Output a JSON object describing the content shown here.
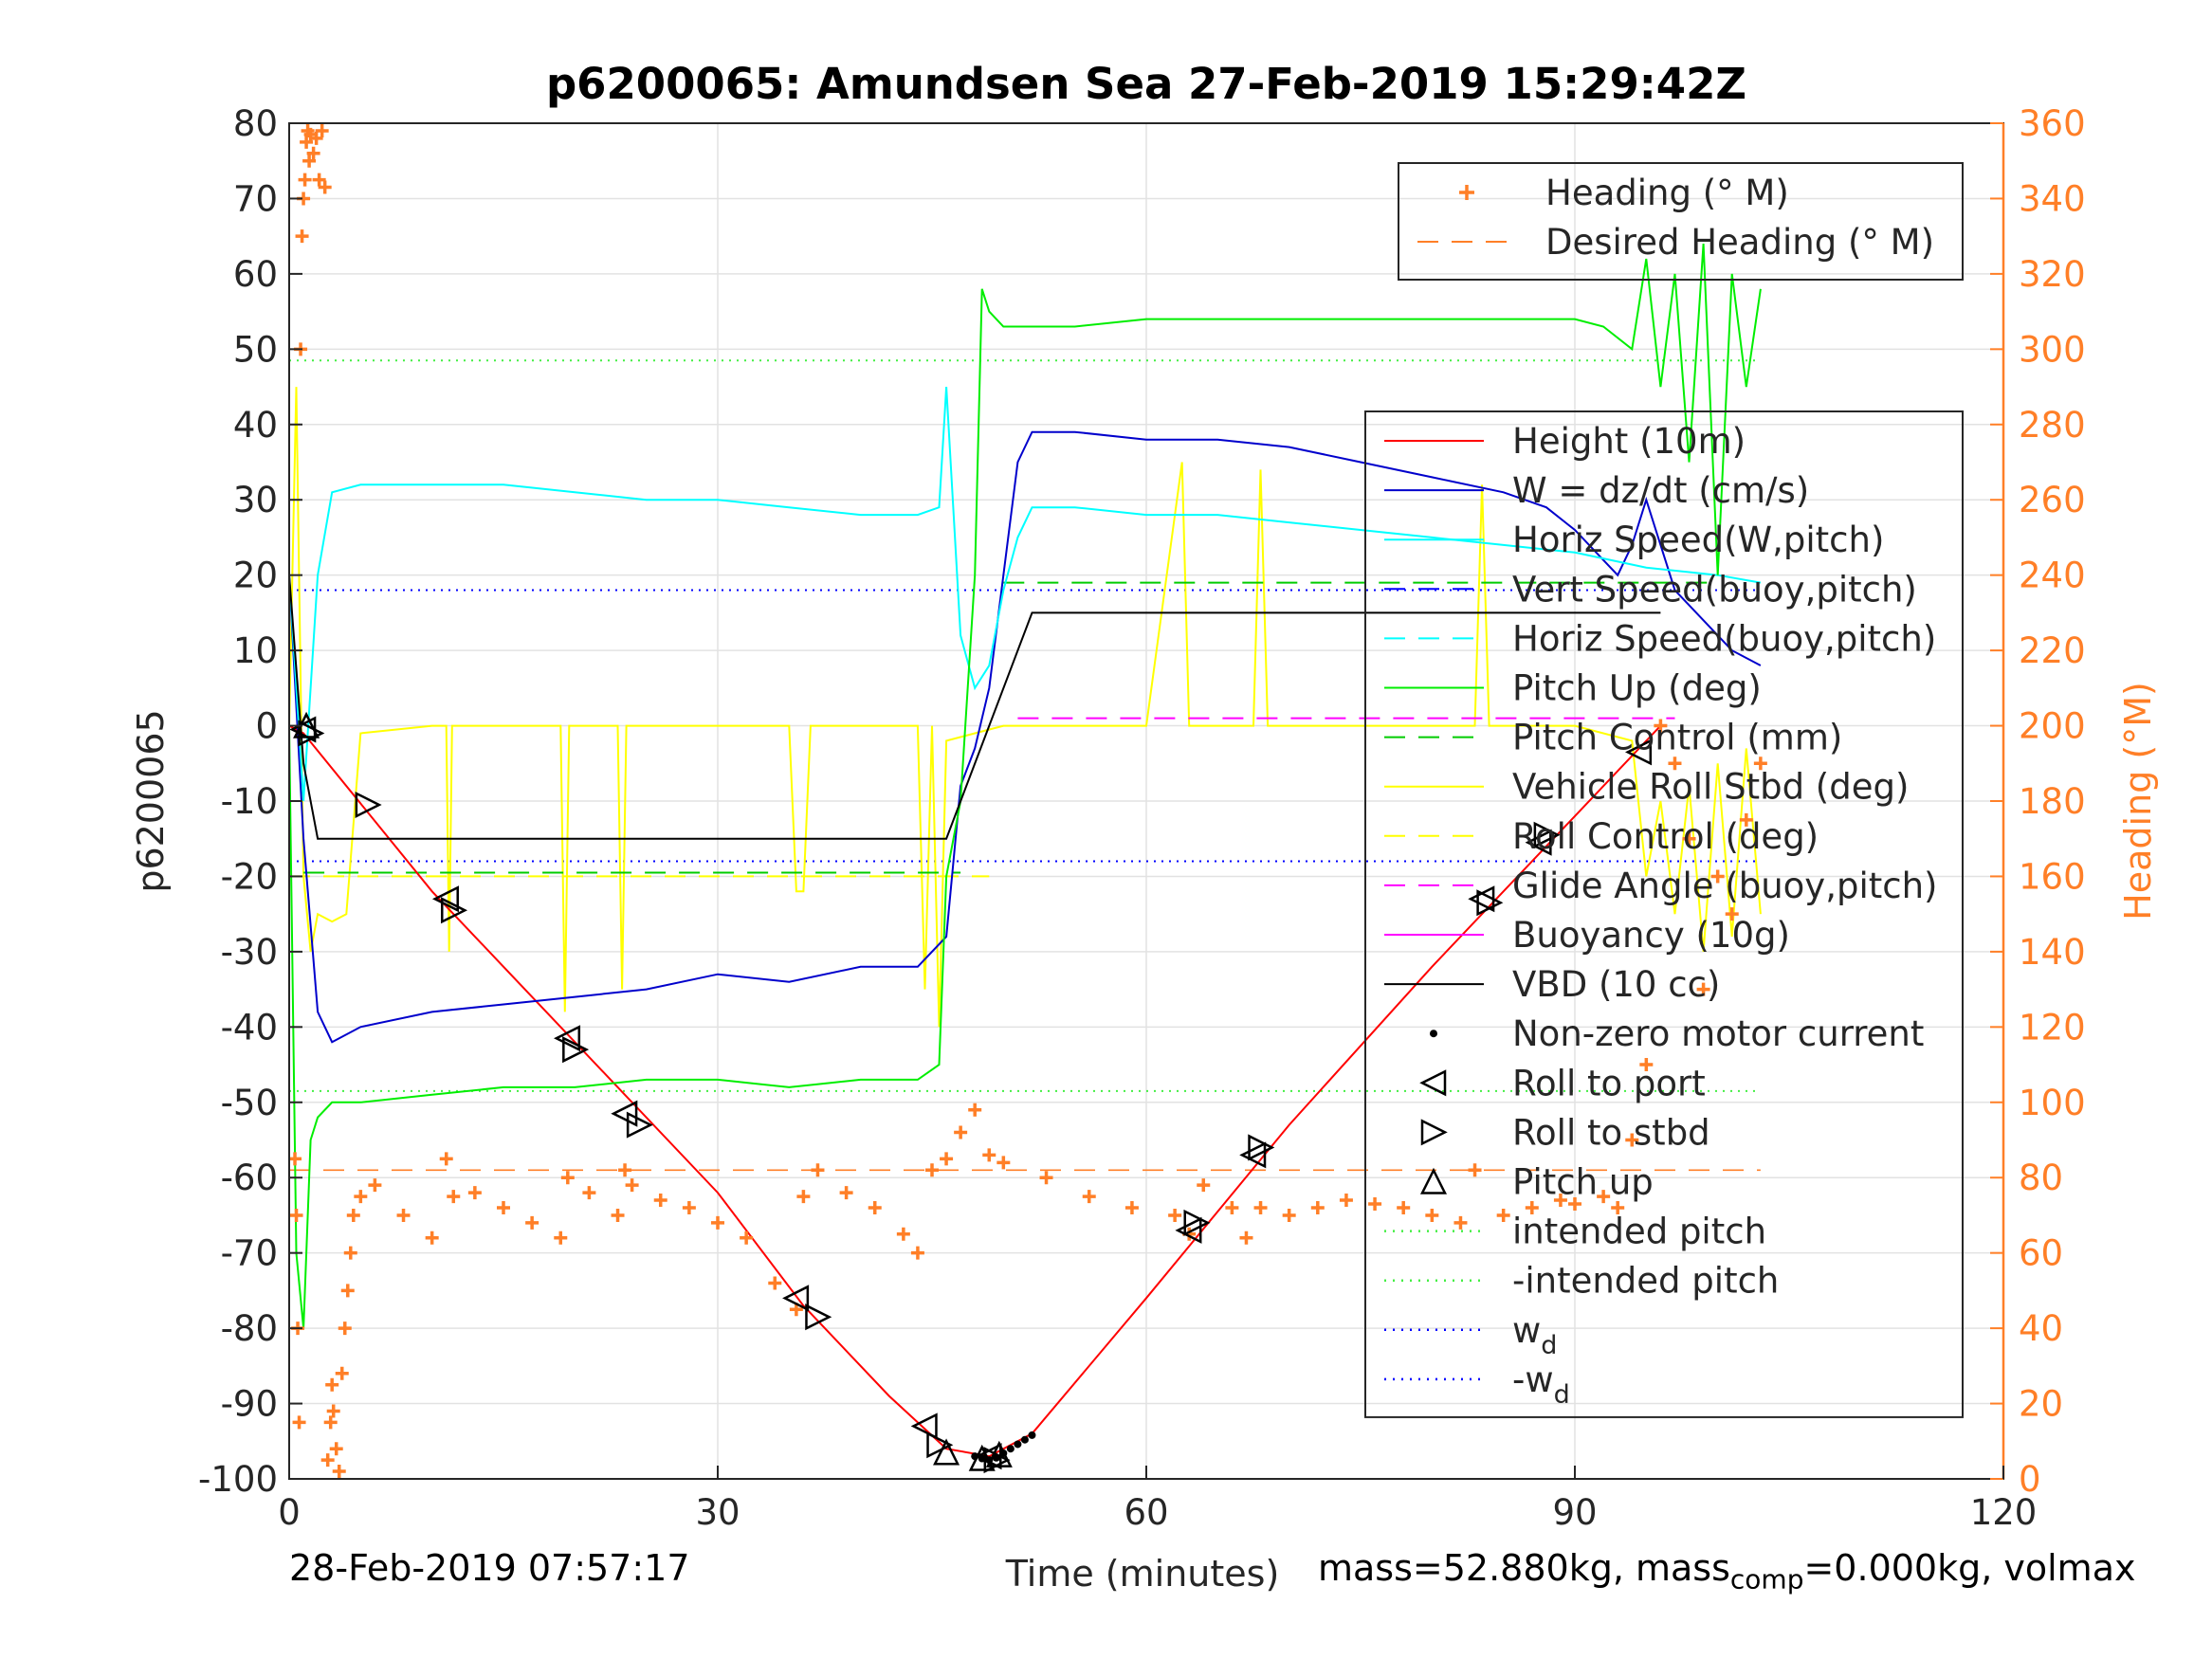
{
  "chart_data": {
    "type": "line",
    "title": "p6200065: Amundsen Sea 27-Feb-2019 15:29:42Z",
    "xlabel": "Time (minutes)",
    "ylabel_left": "p6200065",
    "ylabel_right": "Heading (°M)",
    "xlim": [
      0,
      120
    ],
    "ylim_left": [
      -100,
      80
    ],
    "ylim_right": [
      0,
      360
    ],
    "xticks": [
      "0",
      "30",
      "60",
      "90",
      "120"
    ],
    "yticks_left": [
      "80",
      "70",
      "60",
      "50",
      "40",
      "30",
      "20",
      "10",
      "0",
      "-10",
      "-20",
      "-30",
      "-40",
      "-50",
      "-60",
      "-70",
      "-80",
      "-90",
      "-100"
    ],
    "yticks_right": [
      "360",
      "340",
      "320",
      "300",
      "280",
      "260",
      "240",
      "220",
      "200",
      "180",
      "160",
      "140",
      "120",
      "100",
      "80",
      "60",
      "40",
      "20",
      "0"
    ],
    "grid": true,
    "legend_heading": [
      {
        "label": "Heading (° M)",
        "color": "#ff7f27",
        "style": "plus"
      },
      {
        "label": "Desired Heading (° M)",
        "color": "#ff7f27",
        "style": "dashed"
      }
    ],
    "legend_main": [
      {
        "label": "Height (10m)",
        "color": "#ff0000",
        "style": "solid"
      },
      {
        "label": "W = dz/dt (cm/s)",
        "color": "#0000cc",
        "style": "solid"
      },
      {
        "label": "Horiz Speed(W,pitch)",
        "color": "#00ffff",
        "style": "solid"
      },
      {
        "label": "Vert Speed(buoy,pitch)",
        "color": "#0000ff",
        "style": "dashed"
      },
      {
        "label": "Horiz Speed(buoy,pitch)",
        "color": "#00ffff",
        "style": "dashed"
      },
      {
        "label": "Pitch Up (deg)",
        "color": "#00ee00",
        "style": "solid"
      },
      {
        "label": "Pitch Control (mm)",
        "color": "#00cc00",
        "style": "dashed"
      },
      {
        "label": "Vehicle Roll Stbd (deg)",
        "color": "#ffff00",
        "style": "solid"
      },
      {
        "label": "Roll Control (deg)",
        "color": "#ffff00",
        "style": "dashed"
      },
      {
        "label": "Glide Angle (buoy,pitch)",
        "color": "#ff00ff",
        "style": "dashed"
      },
      {
        "label": "Buoyancy (10g)",
        "color": "#ff00ff",
        "style": "solid"
      },
      {
        "label": "VBD (10 cc)",
        "color": "#000000",
        "style": "solid"
      },
      {
        "label": "Non-zero motor current",
        "color": "#000000",
        "style": "dot"
      },
      {
        "label": "Roll to port",
        "color": "#000000",
        "style": "tri-left"
      },
      {
        "label": "Roll to stbd",
        "color": "#000000",
        "style": "tri-right"
      },
      {
        "label": "Pitch up",
        "color": "#000000",
        "style": "tri-up"
      },
      {
        "label": "intended pitch",
        "color": "#44ee44",
        "style": "dotted"
      },
      {
        "label": "-intended pitch",
        "color": "#44ee44",
        "style": "dotted"
      },
      {
        "label": "w",
        "sub": "d",
        "color": "#0000ff",
        "style": "dotted"
      },
      {
        "label": "-w",
        "sub": "d",
        "color": "#0000ff",
        "style": "dotted"
      }
    ],
    "series": [
      {
        "key": "height",
        "color": "#ff0000",
        "x": [
          0,
          1,
          10,
          20,
          30,
          36,
          42,
          46,
          49,
          52,
          60,
          70,
          80,
          90,
          96
        ],
        "y": [
          0,
          -1,
          -22,
          -42,
          -62,
          -77,
          -89,
          -96,
          -97,
          -94,
          -76,
          -53,
          -32,
          -12,
          0
        ]
      },
      {
        "key": "w",
        "color": "#0000cc",
        "x": [
          0,
          1,
          2,
          3,
          5,
          10,
          15,
          20,
          25,
          30,
          35,
          40,
          44,
          46,
          47,
          48,
          49,
          50,
          51,
          52,
          55,
          60,
          65,
          70,
          75,
          80,
          85,
          88,
          90,
          92,
          93,
          94,
          95,
          97,
          99,
          101,
          103
        ],
        "y": [
          20,
          -15,
          -38,
          -42,
          -40,
          -38,
          -37,
          -36,
          -35,
          -33,
          -34,
          -32,
          -32,
          -28,
          -8,
          -3,
          5,
          20,
          35,
          39,
          39,
          38,
          38,
          37,
          35,
          33,
          31,
          29,
          26,
          22,
          20,
          24,
          30,
          18,
          14,
          10,
          8
        ]
      },
      {
        "key": "horiz",
        "color": "#00ffff",
        "x": [
          0,
          1,
          2,
          3,
          5,
          10,
          15,
          20,
          25,
          30,
          35,
          40,
          44,
          45.5,
          46,
          47,
          48,
          49,
          50,
          51,
          52,
          55,
          60,
          65,
          70,
          75,
          80,
          85,
          90,
          95,
          100,
          103
        ],
        "y": [
          20,
          -10,
          20,
          31,
          32,
          32,
          32,
          31,
          30,
          30,
          29,
          28,
          28,
          29,
          45,
          12,
          5,
          8,
          18,
          25,
          29,
          29,
          28,
          28,
          27,
          26,
          25,
          24,
          23,
          21,
          20,
          19
        ]
      },
      {
        "key": "pitch",
        "color": "#00ee00",
        "x": [
          0,
          0.5,
          1,
          1.5,
          2,
          3,
          4,
          5,
          10,
          15,
          20,
          25,
          30,
          35,
          40,
          44,
          45.5,
          46,
          47,
          48,
          48.5,
          49,
          50,
          55,
          60,
          65,
          70,
          75,
          80,
          85,
          90,
          92,
          94,
          95,
          96,
          97,
          98,
          99,
          100,
          101,
          102,
          103
        ],
        "y": [
          0,
          -70,
          -80,
          -55,
          -52,
          -50,
          -50,
          -50,
          -49,
          -48,
          -48,
          -47,
          -47,
          -48,
          -47,
          -47,
          -45,
          -20,
          -10,
          20,
          58,
          55,
          53,
          53,
          54,
          54,
          54,
          54,
          54,
          54,
          54,
          53,
          50,
          62,
          45,
          60,
          35,
          64,
          20,
          60,
          45,
          58
        ]
      },
      {
        "key": "vbd",
        "color": "#000000",
        "x": [
          0,
          1,
          2,
          10,
          20,
          30,
          40,
          46,
          49,
          52,
          60,
          70,
          80,
          90,
          96
        ],
        "y": [
          20,
          -5,
          -15,
          -15,
          -15,
          -15,
          -15,
          -15,
          0,
          15,
          15,
          15,
          15,
          15,
          15
        ]
      }
    ],
    "roll_series": {
      "color": "#ffff00",
      "x": [
        0,
        0.5,
        1,
        1.5,
        2,
        3,
        4,
        5,
        10,
        11,
        11.2,
        11.4,
        12,
        19,
        19.3,
        19.6,
        20,
        23,
        23.3,
        23.6,
        24,
        35,
        35.5,
        36,
        36.5,
        44,
        44.5,
        45,
        45.5,
        46,
        50,
        60,
        62.5,
        63,
        63.5,
        67.5,
        68,
        68.5,
        75,
        83,
        83.5,
        84,
        84.5,
        90,
        94,
        95,
        96,
        97,
        98,
        99,
        100,
        101,
        102,
        103
      ],
      "y": [
        0,
        45,
        -20,
        -30,
        -25,
        -26,
        -25,
        -1,
        0,
        0,
        -30,
        0,
        0,
        0,
        -38,
        0,
        0,
        0,
        -35,
        0,
        0,
        0,
        -22,
        -22,
        0,
        0,
        -35,
        0,
        -40,
        -2,
        0,
        0,
        35,
        0,
        0,
        0,
        34,
        0,
        0,
        0,
        32,
        0,
        0,
        0,
        -2,
        -20,
        -10,
        -25,
        -8,
        -30,
        -5,
        -28,
        -3,
        -25
      ]
    },
    "roll_control": {
      "color": "#ffff00",
      "x": [
        0,
        49
      ],
      "y": [
        -20,
        -20
      ]
    },
    "pitch_control": [
      {
        "color": "#00cc00",
        "x": [
          1,
          47
        ],
        "y": [
          -19.5,
          -19.5
        ]
      },
      {
        "color": "#00cc00",
        "x": [
          50,
          100
        ],
        "y": [
          19,
          19
        ]
      }
    ],
    "glide_angle": {
      "color": "#ff00ff",
      "x": [
        51,
        97
      ],
      "y": [
        1,
        1
      ]
    },
    "refs": {
      "intended_pitch": 48.5,
      "neg_intended_pitch": -48.5,
      "wd": 18,
      "neg_wd": -18,
      "x_range": [
        0,
        103
      ],
      "wd_color": "#0000ff",
      "pitch_ref_color": "#44ee44"
    },
    "desired_heading": {
      "value": 82,
      "x_range": [
        0,
        103
      ],
      "color": "#ff7f27"
    },
    "heading": {
      "color": "#ff7f27",
      "x": [
        0.4,
        0.5,
        0.6,
        0.7,
        0.8,
        0.9,
        1.0,
        1.1,
        1.2,
        1.3,
        1.4,
        1.5,
        1.7,
        1.9,
        2.1,
        2.3,
        2.5,
        2.7,
        2.9,
        3.0,
        3.1,
        3.3,
        3.5,
        3.7,
        3.9,
        4.1,
        4.3,
        4.5,
        5,
        6,
        8,
        10,
        11,
        11.5,
        13,
        15,
        17,
        19,
        19.5,
        21,
        23,
        23.5,
        24,
        26,
        28,
        30,
        32,
        34,
        35.5,
        36,
        37,
        39,
        41,
        43,
        44,
        45,
        46,
        47,
        48,
        49,
        50,
        53,
        56,
        59,
        62,
        63,
        64,
        66,
        67,
        68,
        70,
        72,
        74,
        76,
        78,
        80,
        82,
        83,
        85,
        87,
        89,
        90,
        92,
        93,
        94,
        95,
        96,
        97,
        98,
        99,
        100,
        101,
        102,
        103
      ],
      "y": [
        85,
        70,
        40,
        15,
        300,
        330,
        340,
        345,
        355,
        358,
        350,
        357,
        352,
        356,
        345,
        358,
        343,
        5,
        15,
        25,
        18,
        8,
        2,
        28,
        40,
        50,
        60,
        70,
        75,
        78,
        70,
        64,
        85,
        75,
        76,
        72,
        68,
        64,
        80,
        76,
        70,
        82,
        78,
        74,
        72,
        68,
        64,
        52,
        45,
        75,
        82,
        76,
        72,
        65,
        60,
        82,
        85,
        92,
        98,
        86,
        84,
        80,
        75,
        72,
        70,
        65,
        78,
        72,
        64,
        72,
        70,
        72,
        74,
        73,
        72,
        70,
        68,
        82,
        70,
        72,
        74,
        73,
        75,
        72,
        90,
        110,
        200,
        190,
        170,
        130,
        160,
        150,
        175,
        190
      ]
    },
    "motor_current": {
      "x": [
        48,
        48.5,
        49,
        49.5,
        50,
        50.5,
        51,
        51.5,
        52
      ],
      "y": [
        -97,
        -97.3,
        -97.5,
        -97.2,
        -96.6,
        -96,
        -95.4,
        -94.8,
        -94.2
      ]
    },
    "markers": {
      "roll_port": [
        [
          1,
          -0.5
        ],
        [
          11,
          -23
        ],
        [
          19.5,
          -41.5
        ],
        [
          23.5,
          -51.5
        ],
        [
          35.5,
          -76
        ],
        [
          44.5,
          -93
        ],
        [
          49,
          -97
        ],
        [
          63,
          -67
        ],
        [
          67.5,
          -57
        ],
        [
          83.5,
          -23
        ],
        [
          87.5,
          -15.5
        ],
        [
          94.5,
          -3.5
        ]
      ],
      "roll_stbd": [
        [
          1.5,
          -1
        ],
        [
          5.5,
          -10.5
        ],
        [
          11.5,
          -24.5
        ],
        [
          20,
          -43
        ],
        [
          24.5,
          -53
        ],
        [
          37,
          -78.5
        ],
        [
          45.5,
          -95.5
        ],
        [
          49.5,
          -97.5
        ],
        [
          63.5,
          -66
        ],
        [
          68,
          -56
        ],
        [
          84,
          -23.5
        ],
        [
          88,
          -14.5
        ]
      ],
      "pitch_up": [
        [
          1.2,
          0
        ],
        [
          46,
          -96.5
        ],
        [
          48.5,
          -97.3
        ],
        [
          49.7,
          -96.8
        ]
      ]
    }
  },
  "footer": {
    "datetime": "28-Feb-2019 07:57:17",
    "mass_text": "mass=52.880kg, mass",
    "mass_sub": "comp",
    "mass_rest": "=0.000kg, volmax"
  }
}
